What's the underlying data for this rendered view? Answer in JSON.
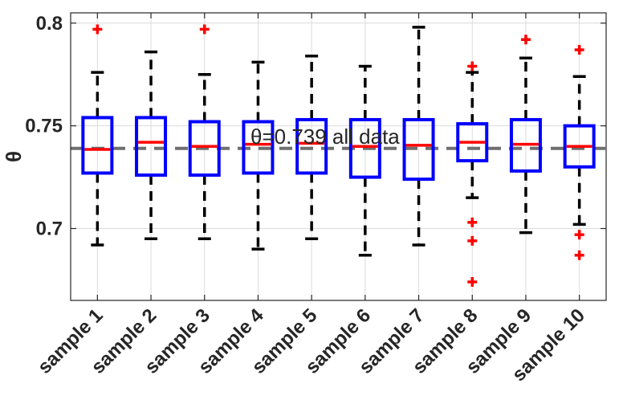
{
  "chart_data": {
    "type": "boxplot",
    "ylabel": "θ",
    "ylim": [
      0.665,
      0.805
    ],
    "yticks": [
      0.7,
      0.75,
      0.8
    ],
    "ytick_labels": [
      "0.7",
      "0.75",
      "0.8"
    ],
    "grid": true,
    "categories": [
      "sample 1",
      "sample 2",
      "sample 3",
      "sample 4",
      "sample 5",
      "sample 6",
      "sample 7",
      "sample 8",
      "sample 9",
      "sample 10"
    ],
    "boxes": [
      {
        "whisker_low": 0.692,
        "q1": 0.727,
        "median": 0.7385,
        "q3": 0.754,
        "whisker_high": 0.776,
        "outliers": [
          0.797
        ]
      },
      {
        "whisker_low": 0.695,
        "q1": 0.726,
        "median": 0.742,
        "q3": 0.754,
        "whisker_high": 0.786,
        "outliers": []
      },
      {
        "whisker_low": 0.695,
        "q1": 0.726,
        "median": 0.74,
        "q3": 0.752,
        "whisker_high": 0.775,
        "outliers": [
          0.797
        ]
      },
      {
        "whisker_low": 0.69,
        "q1": 0.727,
        "median": 0.741,
        "q3": 0.752,
        "whisker_high": 0.781,
        "outliers": []
      },
      {
        "whisker_low": 0.695,
        "q1": 0.727,
        "median": 0.7415,
        "q3": 0.753,
        "whisker_high": 0.784,
        "outliers": []
      },
      {
        "whisker_low": 0.687,
        "q1": 0.725,
        "median": 0.74,
        "q3": 0.753,
        "whisker_high": 0.779,
        "outliers": []
      },
      {
        "whisker_low": 0.692,
        "q1": 0.724,
        "median": 0.7405,
        "q3": 0.753,
        "whisker_high": 0.798,
        "outliers": []
      },
      {
        "whisker_low": 0.715,
        "q1": 0.733,
        "median": 0.742,
        "q3": 0.751,
        "whisker_high": 0.776,
        "outliers": [
          0.779,
          0.703,
          0.694,
          0.674
        ]
      },
      {
        "whisker_low": 0.698,
        "q1": 0.728,
        "median": 0.741,
        "q3": 0.753,
        "whisker_high": 0.783,
        "outliers": [
          0.792
        ]
      },
      {
        "whisker_low": 0.702,
        "q1": 0.73,
        "median": 0.74,
        "q3": 0.75,
        "whisker_high": 0.774,
        "outliers": [
          0.787,
          0.697,
          0.687
        ]
      }
    ],
    "reference_line": {
      "value": 0.739,
      "style": "dashed",
      "color": "#6e6e6e",
      "label": "θ=0.739 all data"
    },
    "colors": {
      "box": "#0000ff",
      "median": "#ff0000",
      "whisker": "#000000",
      "outlier": "#ff0000",
      "grid": "#dcdcdc",
      "axis": "#262626"
    }
  }
}
